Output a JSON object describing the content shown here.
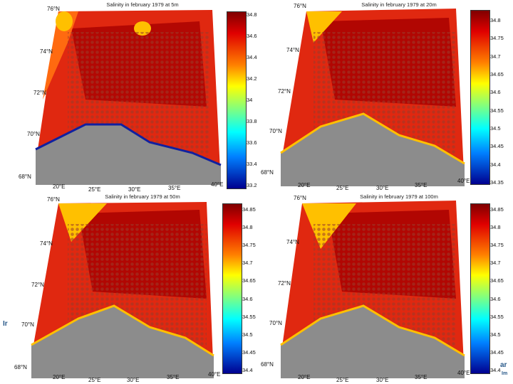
{
  "colors": {
    "land": "#8c8c8c",
    "sea_dark": "#a80000",
    "sea_red": "#e02810",
    "sea_orange": "#ff6a10",
    "sea_yellow": "#ffc000",
    "dot": "#9a3a2a"
  },
  "panels": [
    {
      "title": "Salinity in february 1979 at 5m",
      "lat_labels": [
        "76°N",
        "74°N",
        "72°N",
        "70°N",
        "68°N"
      ],
      "lon_labels": [
        "20°E",
        "25°E",
        "30°E",
        "35°E",
        "40°E"
      ],
      "colorbar": [
        "34.8",
        "34.6",
        "34.4",
        "34.2",
        "34",
        "33.8",
        "33.6",
        "33.4",
        "33.2"
      ]
    },
    {
      "title": "Salinity in february 1979 at 20m",
      "lat_labels": [
        "76°N",
        "74°N",
        "72°N",
        "70°N",
        "68°N"
      ],
      "lon_labels": [
        "20°E",
        "25°E",
        "30°E",
        "35°E",
        "40°E"
      ],
      "colorbar": [
        "34.8",
        "34.75",
        "34.7",
        "34.65",
        "34.6",
        "34.55",
        "34.5",
        "34.45",
        "34.4",
        "34.35"
      ]
    },
    {
      "title": "Salinity in february 1979 at 50m",
      "lat_labels": [
        "76°N",
        "74°N",
        "72°N",
        "70°N",
        "68°N"
      ],
      "lon_labels": [
        "20°E",
        "25°E",
        "30°E",
        "35°E",
        "40°E"
      ],
      "colorbar": [
        "34.85",
        "34.8",
        "34.75",
        "34.7",
        "34.65",
        "34.6",
        "34.55",
        "34.5",
        "34.45",
        "34.4"
      ]
    },
    {
      "title": "Salinity in february 1979 at 100m",
      "lat_labels": [
        "76°N",
        "74°N",
        "72°N",
        "70°N",
        "68°N"
      ],
      "lon_labels": [
        "20°E",
        "25°E",
        "30°E",
        "35°E",
        "40°E"
      ],
      "colorbar": [
        "34.85",
        "34.8",
        "34.75",
        "34.7",
        "34.65",
        "34.6",
        "34.55",
        "34.5",
        "34.45",
        "34.4"
      ]
    }
  ],
  "edge_fragments": [
    "Ir",
    "ar",
    "Im"
  ]
}
